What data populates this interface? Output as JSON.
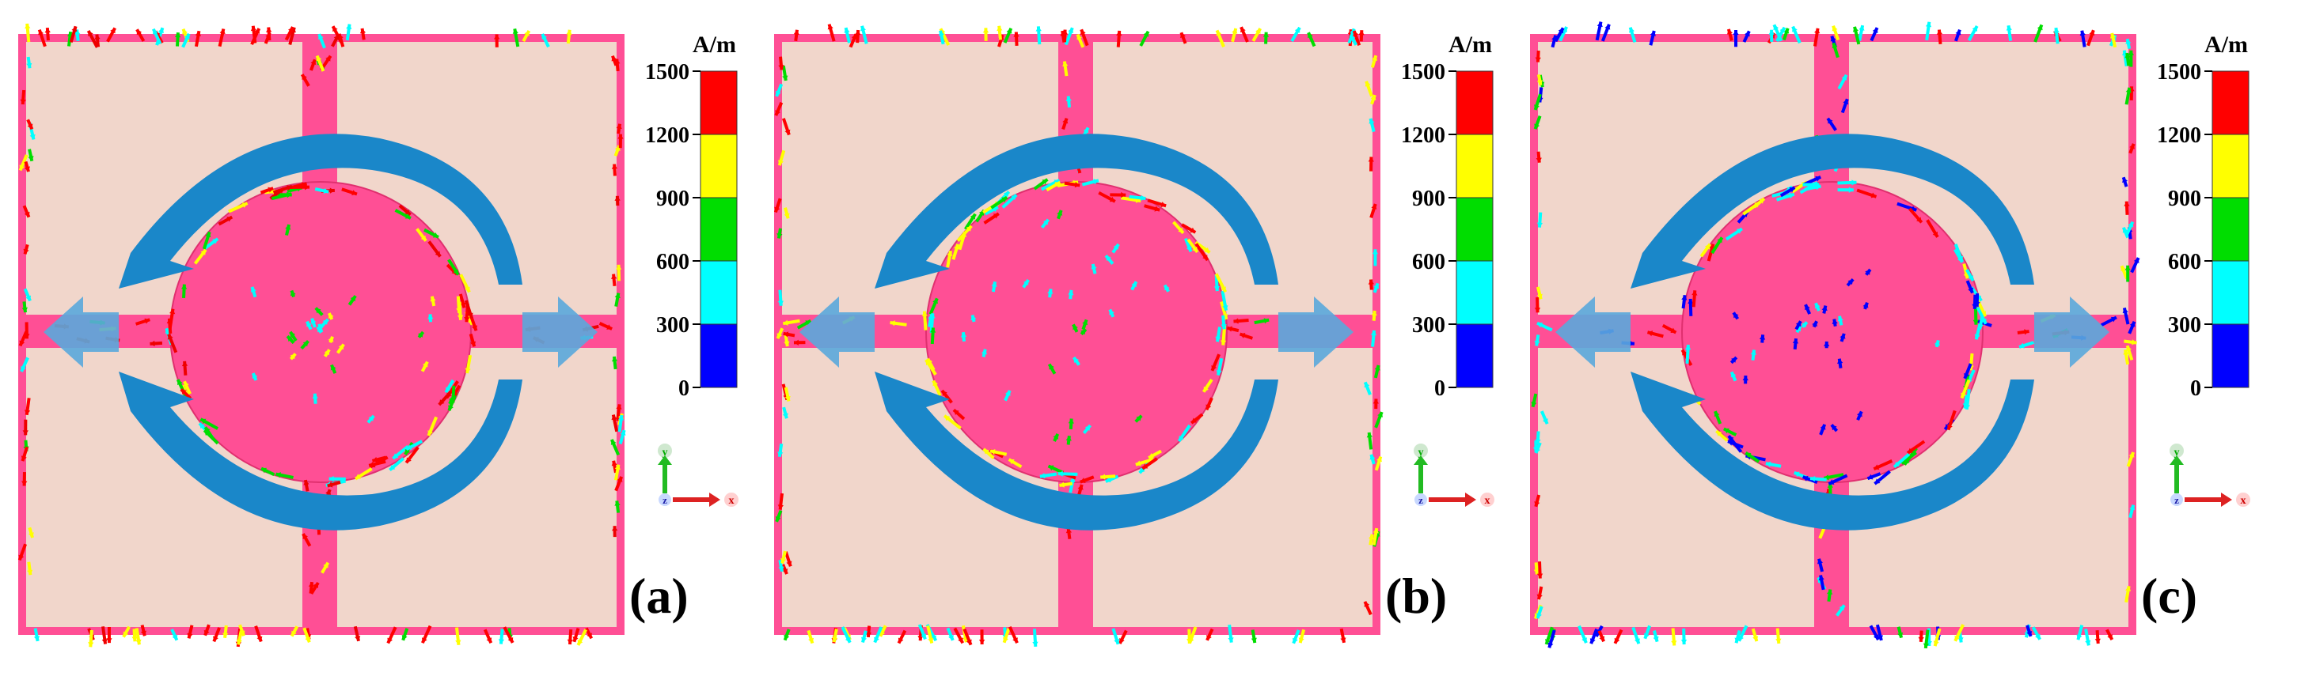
{
  "figure": {
    "description_free": true,
    "colorbar": {
      "unit": "A/m",
      "ticks": [
        "1500",
        "1200",
        "900",
        "600",
        "300",
        "0"
      ],
      "bands": [
        {
          "color": "#ff0000"
        },
        {
          "color": "#ffff00"
        },
        {
          "color": "#00dd00"
        },
        {
          "color": "#00ffff"
        },
        {
          "color": "#0000ff"
        }
      ]
    },
    "axes_triad": {
      "y_label": "y",
      "z_label": "z",
      "x_label": "x"
    },
    "colors": {
      "substrate": "#f1d6cb",
      "metal": "#ff4f95",
      "metal_edge": "#e0306f",
      "rotation_arrow": "#1a87c9",
      "flow_arrow": "#5aa8dc"
    },
    "panels": [
      {
        "label": "(a)",
        "vector_palette": [
          "#ff0000",
          "#ff0000",
          "#ff0000",
          "#ee0000",
          "#ffff00",
          "#00dd00",
          "#00ffff"
        ]
      },
      {
        "label": "(b)",
        "vector_palette": [
          "#ff0000",
          "#ff0000",
          "#ffff00",
          "#ffff00",
          "#00dd00",
          "#00ffff",
          "#00ffff"
        ]
      },
      {
        "label": "(c)",
        "vector_palette": [
          "#ff0000",
          "#ffff00",
          "#00dd00",
          "#00ffff",
          "#00ffff",
          "#0000ff",
          "#0000ff"
        ]
      }
    ]
  }
}
